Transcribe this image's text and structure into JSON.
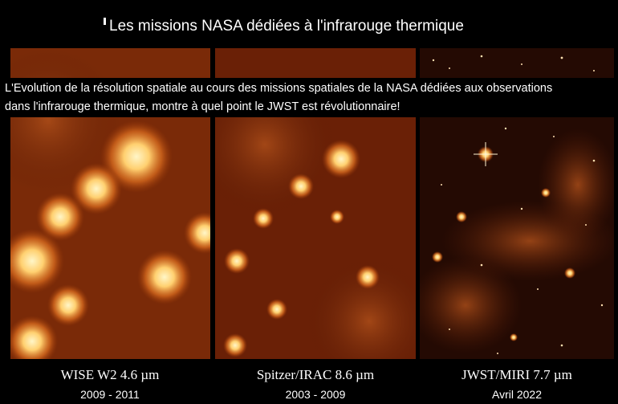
{
  "header": {
    "title": "Les missions NASA dédiées à l'infrarouge thermique"
  },
  "caption": {
    "lines": [
      "L'Evolution de la résolution spatiale au cours des missions spatiales de la NASA dédiées aux observations",
      "dans l'infrarouge thermique, montre à quel point le JWST est révolutionnaire!"
    ]
  },
  "panels": [
    {
      "label": "WISE W2 4.6 µm",
      "dates": "2009 - 2011"
    },
    {
      "label": "Spitzer/IRAC 8.6 µm",
      "dates": "2003 - 2009"
    },
    {
      "label": "JWST/MIRI 7.7 µm",
      "dates": "Avril 2022"
    }
  ]
}
